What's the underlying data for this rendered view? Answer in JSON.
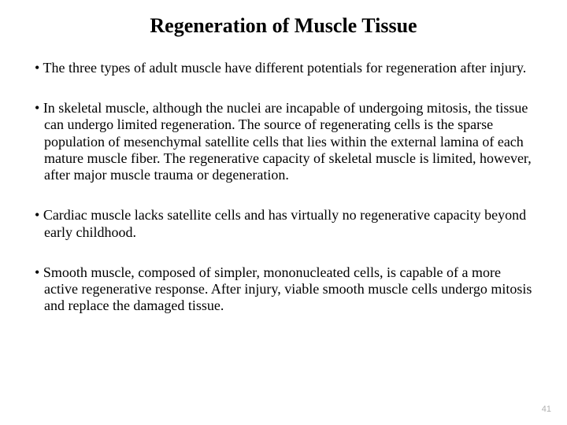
{
  "title": "Regeneration of Muscle Tissue",
  "bullets": [
    "The three types of adult muscle have different potentials for regeneration after injury.",
    "In skeletal muscle, although the nuclei are incapable of undergoing mitosis, the tissue can undergo limited regeneration. The source of regenerating cells is the sparse population of mesenchymal satellite cells that lies within the external lamina of each mature muscle fiber. The regenerative capacity of skeletal muscle is limited, however, after major muscle trauma or degeneration.",
    "Cardiac muscle lacks satellite cells and has virtually no regenerative capacity beyond early childhood.",
    "Smooth muscle, composed of simpler, mononucleated cells, is capable of a more active regenerative response. After injury, viable smooth muscle cells undergo mitosis and replace the damaged tissue."
  ],
  "page_number": "41"
}
